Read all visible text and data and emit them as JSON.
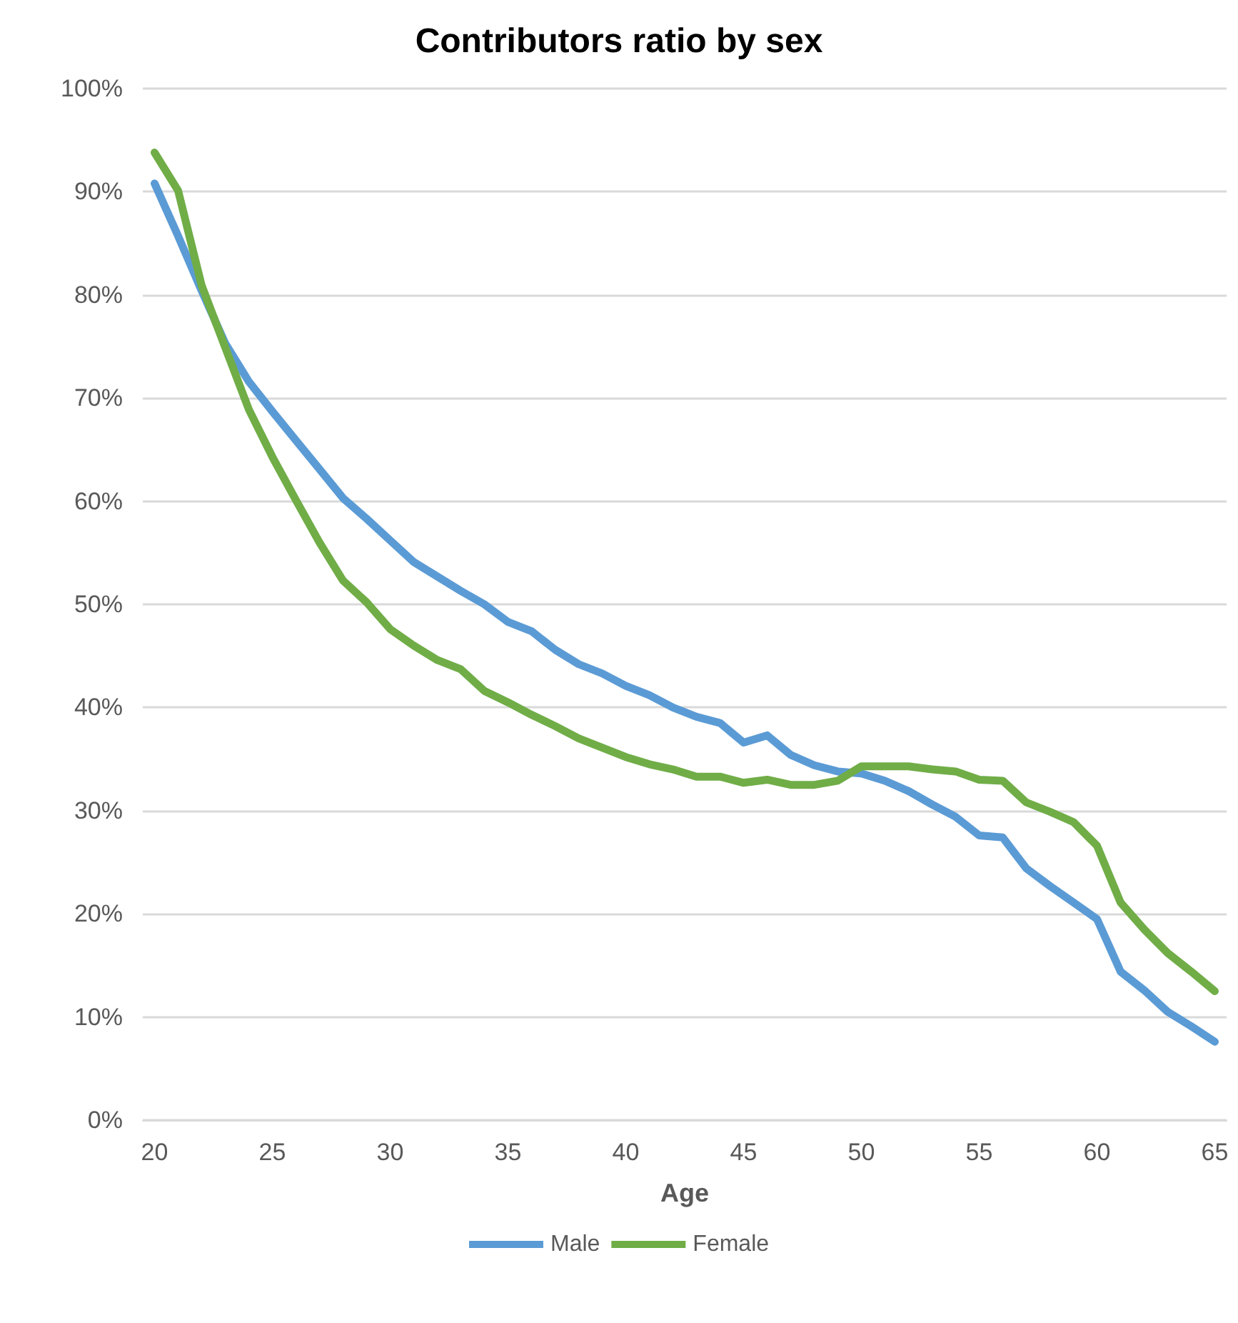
{
  "chart_data": {
    "type": "line",
    "title": "Contributors ratio by sex",
    "xlabel": "Age",
    "x": [
      20,
      21,
      22,
      23,
      24,
      25,
      26,
      27,
      28,
      29,
      30,
      31,
      32,
      33,
      34,
      35,
      36,
      37,
      38,
      39,
      40,
      41,
      42,
      43,
      44,
      45,
      46,
      47,
      48,
      49,
      50,
      51,
      52,
      53,
      54,
      55,
      56,
      57,
      58,
      59,
      60,
      61,
      62,
      63,
      64,
      65
    ],
    "series": [
      {
        "name": "Male",
        "color": "#5b9bd5",
        "values": [
          90.8,
          85.7,
          80.4,
          75.3,
          71.6,
          68.7,
          65.9,
          63.1,
          60.3,
          58.3,
          56.2,
          54.1,
          52.7,
          51.3,
          50.0,
          48.3,
          47.4,
          45.6,
          44.2,
          43.3,
          42.1,
          41.2,
          40.0,
          39.1,
          38.5,
          36.6,
          37.3,
          35.4,
          34.4,
          33.8,
          33.6,
          32.9,
          31.9,
          30.6,
          29.4,
          27.6,
          27.4,
          24.4,
          22.7,
          21.1,
          19.5,
          14.4,
          12.6,
          10.5,
          9.1,
          7.6
        ]
      },
      {
        "name": "Female",
        "color": "#70ad47",
        "values": [
          93.8,
          90.1,
          80.9,
          74.9,
          68.9,
          64.3,
          60.1,
          56.0,
          52.3,
          50.2,
          47.6,
          46.0,
          44.6,
          43.7,
          41.6,
          40.5,
          39.3,
          38.2,
          37.0,
          36.1,
          35.2,
          34.5,
          34.0,
          33.3,
          33.3,
          32.7,
          33.0,
          32.5,
          32.5,
          32.9,
          34.3,
          34.3,
          34.3,
          34.0,
          33.8,
          33.0,
          32.9,
          30.8,
          29.9,
          28.9,
          26.6,
          21.1,
          18.5,
          16.2,
          14.4,
          12.5
        ]
      }
    ],
    "xlim": [
      19.5,
      65.5
    ],
    "xticks": [
      20,
      25,
      30,
      35,
      40,
      45,
      50,
      55,
      60,
      65
    ],
    "ylim": [
      0,
      100
    ],
    "yticks": [
      {
        "value": 0,
        "label": "0%"
      },
      {
        "value": 10,
        "label": "10%"
      },
      {
        "value": 20,
        "label": "20%"
      },
      {
        "value": 30,
        "label": "30%"
      },
      {
        "value": 40,
        "label": "40%"
      },
      {
        "value": 50,
        "label": "50%"
      },
      {
        "value": 60,
        "label": "60%"
      },
      {
        "value": 70,
        "label": "70%"
      },
      {
        "value": 80,
        "label": "80%"
      },
      {
        "value": 90,
        "label": "90%"
      },
      {
        "value": 100,
        "label": "100%"
      }
    ],
    "grid": "y",
    "legend": "bottom",
    "marker": "none",
    "line_style": "solid"
  }
}
